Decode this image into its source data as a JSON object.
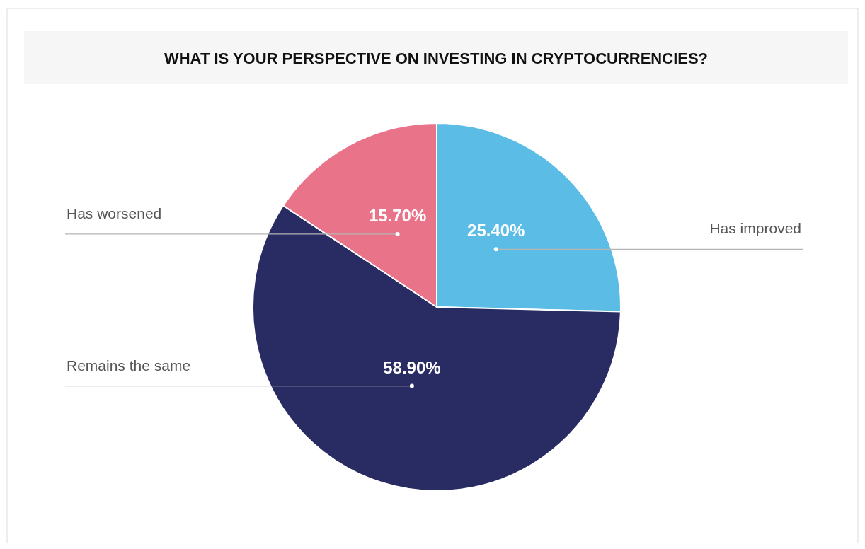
{
  "chart_data": {
    "type": "pie",
    "title": "WHAT IS YOUR PERSPECTIVE ON INVESTING IN CRYPTOCURRENCIES?",
    "categories": [
      "Has improved",
      "Remains the same",
      "Has worsened"
    ],
    "values": [
      25.4,
      58.9,
      15.7
    ],
    "colors": [
      "#5bbce6",
      "#282c63",
      "#e97389"
    ],
    "value_labels": [
      "25.40%",
      "58.90%",
      "15.70%"
    ]
  }
}
